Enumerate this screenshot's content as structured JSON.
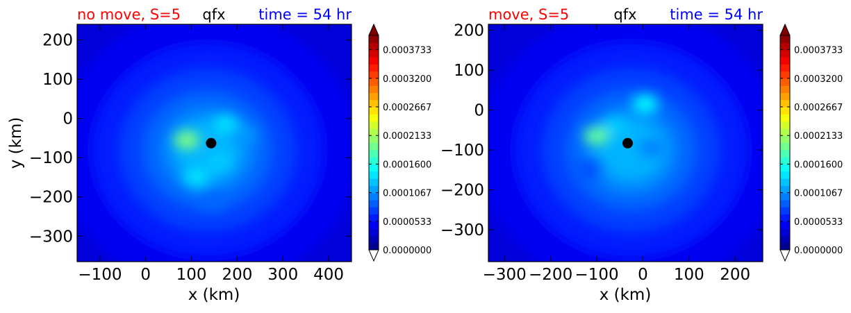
{
  "chart_data": [
    {
      "type": "heatmap",
      "variable": "qfx",
      "title_left": "no move, S=5",
      "title_center": "qfx",
      "title_right": "time = 54 hr",
      "xlabel": "x (km)",
      "ylabel": "y (km)",
      "xlim": [
        -150,
        450
      ],
      "ylim": [
        -365,
        240
      ],
      "xticks": [
        -100,
        0,
        100,
        200,
        300,
        400
      ],
      "xtick_labels": [
        "−100",
        "0",
        "100",
        "200",
        "300",
        "400"
      ],
      "yticks": [
        200,
        100,
        0,
        -100,
        -200,
        -300
      ],
      "ytick_labels": [
        "200",
        "100",
        "0",
        "−100",
        "−200",
        "−300"
      ],
      "center_marker": {
        "x": 143,
        "y": -63
      },
      "features": [
        {
          "x": 90,
          "y": -55,
          "value": 0.0002
        },
        {
          "x": 175,
          "y": -15,
          "value": 0.00014
        },
        {
          "x": 110,
          "y": -150,
          "value": 0.00014
        },
        {
          "x": 160,
          "y": -110,
          "value": 0.00013
        },
        {
          "x": 145,
          "y": -210,
          "value": 9e-05
        },
        {
          "x": 215,
          "y": -40,
          "value": 0.00011
        }
      ]
    },
    {
      "type": "heatmap",
      "variable": "qfx",
      "title_left": "move, S=5",
      "title_center": "qfx",
      "title_right": "time = 54 hr",
      "xlabel": "x (km)",
      "ylabel": "",
      "xlim": [
        -335,
        260
      ],
      "ylim": [
        -380,
        215
      ],
      "xticks": [
        -300,
        -200,
        -100,
        0,
        100,
        200
      ],
      "xtick_labels": [
        "−300",
        "−200",
        "−100",
        "0",
        "100",
        "200"
      ],
      "yticks": [
        200,
        100,
        0,
        -100,
        -200,
        -300
      ],
      "ytick_labels": [
        "200",
        "100",
        "0",
        "−100",
        "−200",
        "−300"
      ],
      "center_marker": {
        "x": -33,
        "y": -83
      },
      "features": [
        {
          "x": -100,
          "y": -65,
          "value": 0.00019
        },
        {
          "x": 5,
          "y": 15,
          "value": 0.00015
        },
        {
          "x": -60,
          "y": -40,
          "value": 0.00013
        },
        {
          "x": 20,
          "y": -95,
          "value": 0.0001
        },
        {
          "x": -120,
          "y": -150,
          "value": 8e-05
        }
      ]
    }
  ],
  "colorbar": {
    "min": 0.0,
    "max": 0.0004,
    "ticks": [
      0.0,
      5.33e-05,
      0.0001067,
      0.00016,
      0.0002133,
      0.0002667,
      0.00032,
      0.0003733
    ],
    "tick_labels": [
      "0.0000000",
      "0.0000533",
      "0.0001067",
      "0.0001600",
      "0.0002133",
      "0.0002667",
      "0.0003200",
      "0.0003733"
    ],
    "extend": "both"
  },
  "colors": {
    "title_left": "#ff0000",
    "title_center": "#000000",
    "title_right": "#0000ff",
    "background": "#0000d8"
  }
}
